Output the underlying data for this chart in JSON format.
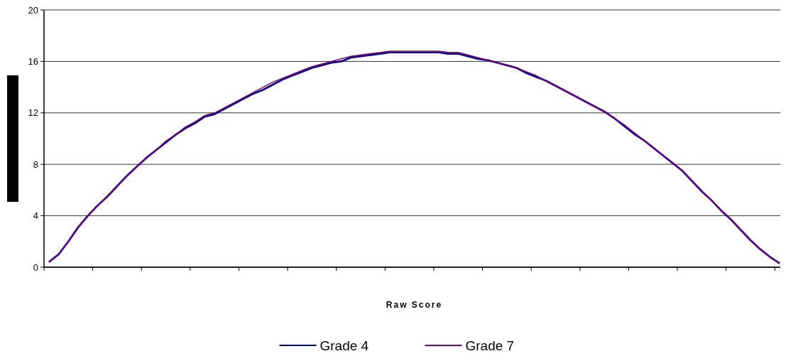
{
  "chart_data": {
    "type": "line",
    "xlabel": "Raw Score",
    "categories": [
      null,
      null,
      null,
      null,
      null,
      null,
      null,
      null,
      null,
      null,
      null,
      null,
      null,
      null,
      null,
      null,
      null,
      null,
      null,
      null,
      null,
      null,
      null,
      null,
      null,
      null,
      null,
      null,
      null,
      null,
      null,
      null,
      null,
      null,
      null,
      null,
      null,
      null,
      null,
      null,
      null,
      null,
      null,
      null,
      null,
      null,
      null,
      null,
      null,
      null,
      null,
      null,
      null,
      null,
      null,
      null,
      null,
      null,
      null,
      null,
      null,
      null,
      null,
      null,
      null,
      null,
      null,
      null,
      null,
      null,
      null,
      null,
      null,
      null,
      null,
      null
    ],
    "series": [
      {
        "name": "Grade 4",
        "color": "#000080",
        "values": [
          0.4,
          1.0,
          2.0,
          3.1,
          4.0,
          4.8,
          5.5,
          6.3,
          7.1,
          7.8,
          8.5,
          9.1,
          9.7,
          10.3,
          10.8,
          11.2,
          11.7,
          11.9,
          12.3,
          12.7,
          13.1,
          13.5,
          13.8,
          14.2,
          14.6,
          14.9,
          15.2,
          15.5,
          15.7,
          15.9,
          16.0,
          16.3,
          16.4,
          16.5,
          16.6,
          16.7,
          16.7,
          16.7,
          16.7,
          16.7,
          16.7,
          16.6,
          16.6,
          16.4,
          16.2,
          16.1,
          15.9,
          15.7,
          15.5,
          15.1,
          14.8,
          14.5,
          14.1,
          13.7,
          13.3,
          12.9,
          12.5,
          12.1,
          11.6,
          11.0,
          10.4,
          9.9,
          9.3,
          8.7,
          8.1,
          7.5,
          6.7,
          5.9,
          5.2,
          4.4,
          3.7,
          2.9,
          2.1,
          1.4,
          0.8,
          0.3
        ]
      },
      {
        "name": "Grade 7",
        "color": "#800080",
        "values": [
          0.4,
          1.0,
          2.0,
          3.1,
          4.0,
          4.8,
          5.5,
          6.3,
          7.1,
          7.8,
          8.5,
          9.1,
          9.8,
          10.3,
          10.9,
          11.3,
          11.8,
          12.0,
          12.4,
          12.8,
          13.2,
          13.6,
          14.0,
          14.4,
          14.7,
          15.0,
          15.3,
          15.6,
          15.8,
          16.0,
          16.2,
          16.4,
          16.5,
          16.6,
          16.7,
          16.8,
          16.8,
          16.8,
          16.8,
          16.8,
          16.8,
          16.7,
          16.7,
          16.5,
          16.3,
          16.1,
          15.9,
          15.7,
          15.5,
          15.2,
          14.9,
          14.5,
          14.1,
          13.7,
          13.3,
          12.9,
          12.5,
          12.1,
          11.6,
          11.1,
          10.5,
          9.9,
          9.3,
          8.7,
          8.1,
          7.5,
          6.7,
          5.9,
          5.2,
          4.4,
          3.7,
          2.9,
          2.1,
          1.4,
          0.8,
          0.3
        ]
      }
    ],
    "ylim": [
      0,
      20
    ],
    "yticks": [
      0,
      4,
      8,
      12,
      16,
      20
    ],
    "grid": "y",
    "legend": "bottom",
    "marker": "none",
    "line_style": "solid"
  }
}
